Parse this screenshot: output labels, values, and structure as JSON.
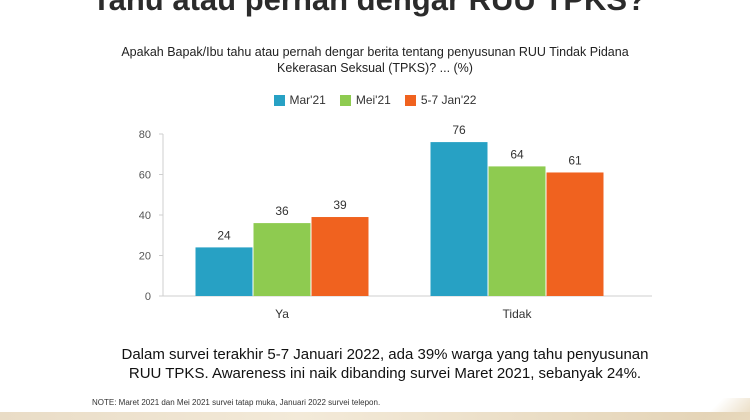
{
  "slide": {
    "title": "Tahu atau pernah dengar RUU TPKS?",
    "question_line1": "Apakah Bapak/Ibu tahu atau pernah dengar berita tentang penyusunan RUU Tindak Pidana",
    "question_line2": "Kekerasan Seksual (TPKS)? ... (%)",
    "summary_line1": "Dalam survei terakhir 5-7 Januari 2022, ada 39% warga yang tahu penyusunan",
    "summary_line2": "RUU TPKS. Awareness ini naik dibanding survei Maret 2021, sebanyak 24%.",
    "note": "NOTE: Maret 2021 dan Mei 2021 survei tatap muka, Januari 2022 survei telepon."
  },
  "chart_data": {
    "type": "bar",
    "title": "",
    "xlabel": "",
    "ylabel": "",
    "categories": [
      "Ya",
      "Tidak"
    ],
    "series": [
      {
        "name": "Mar'21",
        "color": "#27a1c4",
        "values": [
          24,
          76
        ]
      },
      {
        "name": "Mei'21",
        "color": "#8ecb50",
        "values": [
          36,
          64
        ]
      },
      {
        "name": "5-7 Jan'22",
        "color": "#f0621f",
        "values": [
          39,
          61
        ]
      }
    ],
    "ylim": [
      0,
      80
    ],
    "yticks": [
      0,
      20,
      40,
      60,
      80
    ],
    "grid": false,
    "legend": "top-center",
    "data_labels": true
  }
}
